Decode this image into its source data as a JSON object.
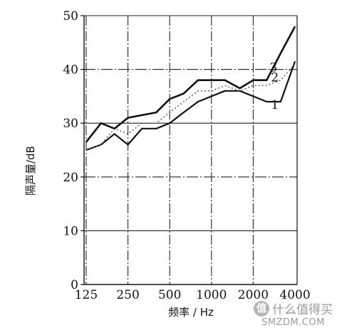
{
  "chart_data": {
    "type": "line",
    "title": "",
    "xlabel": "频率 / Hz",
    "ylabel": "隔声量/dB",
    "x_scale": "log",
    "x": [
      125,
      160,
      200,
      250,
      315,
      400,
      500,
      630,
      800,
      1000,
      1250,
      1600,
      2000,
      2500,
      3150,
      4000
    ],
    "x_ticks": [
      125,
      250,
      500,
      1000,
      2000,
      4000
    ],
    "x_tick_labels": [
      "125",
      "250",
      "500",
      "1000",
      "2000",
      "4000"
    ],
    "ylim": [
      0,
      50
    ],
    "y_ticks": [
      0,
      10,
      20,
      30,
      40,
      50
    ],
    "y_tick_labels": [
      "0",
      "10",
      "20",
      "30",
      "40",
      "50"
    ],
    "grid": true,
    "series": [
      {
        "name": "1",
        "values": [
          25,
          26,
          28,
          26,
          29,
          29,
          30,
          32,
          34,
          35,
          36,
          36,
          35,
          34,
          34,
          41.5
        ]
      },
      {
        "name": "2",
        "values": [
          25,
          26,
          29,
          28,
          30,
          30,
          32,
          34,
          36,
          36,
          37,
          36,
          37,
          37,
          38,
          41
        ]
      },
      {
        "name": "3",
        "values": [
          26.5,
          30,
          29,
          31,
          31.5,
          32,
          34.5,
          35.5,
          38,
          38,
          38,
          36.5,
          38,
          38,
          43,
          48
        ]
      }
    ],
    "series_style": {
      "1": {
        "color": "#111111",
        "dash": "",
        "width": 2.2
      },
      "2": {
        "color": "#555555",
        "dash": "2,3",
        "width": 1.4
      },
      "3": {
        "color": "#111111",
        "dash": "",
        "width": 2.6
      }
    }
  },
  "watermark": {
    "logo": "值",
    "text": "什么值得买",
    "domain": "SMZDM.COM"
  }
}
